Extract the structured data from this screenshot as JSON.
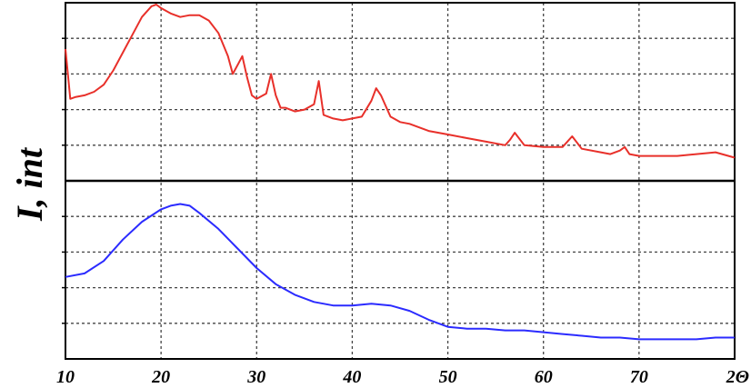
{
  "chart_data": {
    "type": "line",
    "ylabel": "I, int",
    "xlabel": "2Θ",
    "x_ticks": [
      "10",
      "20",
      "30",
      "40",
      "50",
      "60",
      "70",
      "2Θ"
    ],
    "x_tick_values": [
      10,
      20,
      30,
      40,
      50,
      60,
      70,
      80
    ],
    "xlim": [
      10,
      80
    ],
    "grid": true,
    "grid_style": "dotted",
    "panels": [
      {
        "position": "top",
        "series": [
          {
            "color": "#e8302a",
            "x": [
              10,
              10.5,
              11,
              12,
              13,
              14,
              15,
              16,
              17,
              18,
              19,
              19.5,
              20,
              21,
              22,
              23,
              24,
              25,
              26,
              27,
              27.5,
              28,
              28.5,
              29,
              29.5,
              30,
              31,
              31.5,
              32,
              32.5,
              33,
              34,
              35,
              36,
              36.5,
              37,
              38,
              39,
              40,
              41,
              42,
              42.5,
              43,
              44,
              45,
              46,
              47,
              48,
              50,
              52,
              54,
              56,
              56.5,
              57,
              58,
              60,
              62,
              62.5,
              63,
              64,
              66,
              67,
              68,
              68.5,
              69,
              70,
              72,
              74,
              76,
              78,
              80
            ],
            "y": [
              0.74,
              0.46,
              0.47,
              0.48,
              0.5,
              0.54,
              0.62,
              0.72,
              0.82,
              0.92,
              0.98,
              0.99,
              0.97,
              0.94,
              0.92,
              0.93,
              0.93,
              0.9,
              0.83,
              0.7,
              0.6,
              0.65,
              0.7,
              0.58,
              0.48,
              0.46,
              0.49,
              0.6,
              0.48,
              0.41,
              0.41,
              0.39,
              0.4,
              0.43,
              0.56,
              0.37,
              0.35,
              0.34,
              0.35,
              0.36,
              0.45,
              0.52,
              0.48,
              0.36,
              0.33,
              0.32,
              0.3,
              0.28,
              0.26,
              0.24,
              0.22,
              0.2,
              0.23,
              0.27,
              0.2,
              0.19,
              0.19,
              0.22,
              0.25,
              0.18,
              0.16,
              0.15,
              0.17,
              0.19,
              0.15,
              0.14,
              0.14,
              0.14,
              0.15,
              0.16,
              0.13
            ]
          }
        ]
      },
      {
        "position": "bottom",
        "series": [
          {
            "color": "#2b2bff",
            "x": [
              10,
              12,
              14,
              16,
              18,
              20,
              21,
              22,
              23,
              24,
              26,
              28,
              30,
              32,
              34,
              36,
              38,
              40,
              42,
              44,
              46,
              48,
              50,
              52,
              54,
              56,
              58,
              60,
              62,
              64,
              66,
              68,
              70,
              72,
              74,
              76,
              78,
              80
            ],
            "y": [
              0.46,
              0.48,
              0.55,
              0.67,
              0.77,
              0.84,
              0.86,
              0.87,
              0.86,
              0.82,
              0.73,
              0.62,
              0.51,
              0.42,
              0.36,
              0.32,
              0.3,
              0.3,
              0.31,
              0.3,
              0.27,
              0.22,
              0.18,
              0.17,
              0.17,
              0.16,
              0.16,
              0.15,
              0.14,
              0.13,
              0.12,
              0.12,
              0.11,
              0.11,
              0.11,
              0.11,
              0.12,
              0.12
            ]
          }
        ]
      }
    ]
  }
}
